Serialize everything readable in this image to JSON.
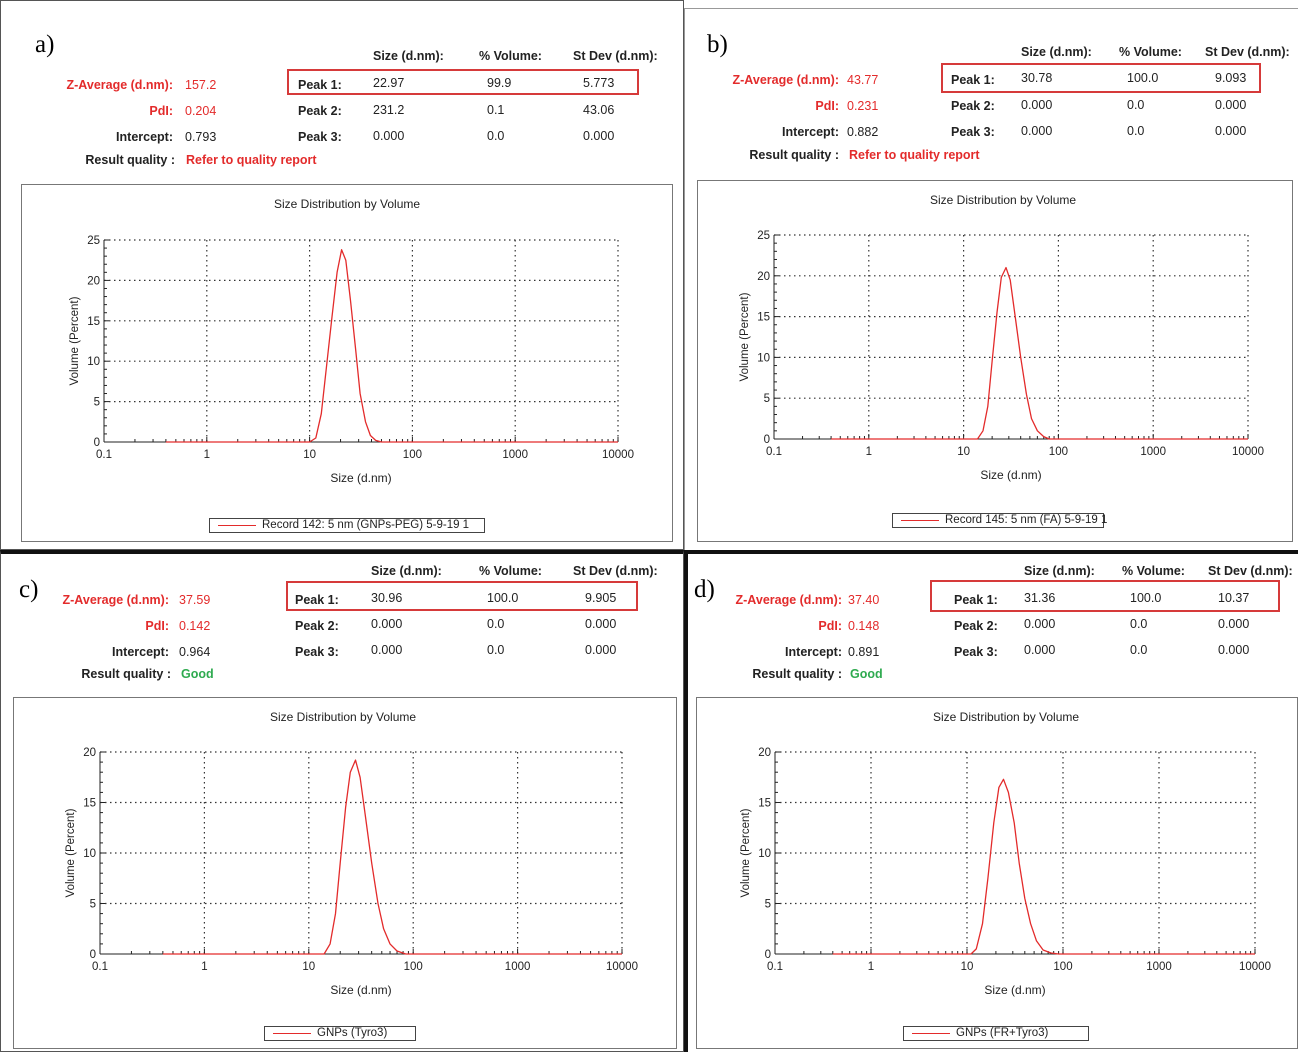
{
  "panels": [
    {
      "label": "a)",
      "header": {
        "size": "Size (d.nm):",
        "volume": "% Volume:",
        "stdev": "St Dev (d.nm):"
      },
      "z_average_label": "Z-Average (d.nm):",
      "z_average": "157.2",
      "pdi_label": "PdI:",
      "pdi": "0.204",
      "intercept_label": "Intercept:",
      "intercept": "0.793",
      "result_quality_label": "Result quality :",
      "result_quality": "Refer to quality report",
      "quality_status": "warning",
      "peaks": [
        {
          "label": "Peak 1:",
          "size": "22.97",
          "volume": "99.9",
          "stdev": "5.773"
        },
        {
          "label": "Peak 2:",
          "size": "231.2",
          "volume": "0.1",
          "stdev": "43.06"
        },
        {
          "label": "Peak 3:",
          "size": "0.000",
          "volume": "0.0",
          "stdev": "0.000"
        }
      ],
      "legend": "Record 142: 5 nm (GNPs-PEG) 5-9-19 1"
    },
    {
      "label": "b)",
      "header": {
        "size": "Size (d.nm):",
        "volume": "% Volume:",
        "stdev": "St Dev (d.nm):"
      },
      "z_average_label": "Z-Average (d.nm):",
      "z_average": "43.77",
      "pdi_label": "PdI:",
      "pdi": "0.231",
      "intercept_label": "Intercept:",
      "intercept": "0.882",
      "result_quality_label": "Result quality :",
      "result_quality": "Refer to quality report",
      "quality_status": "warning",
      "peaks": [
        {
          "label": "Peak 1:",
          "size": "30.78",
          "volume": "100.0",
          "stdev": "9.093"
        },
        {
          "label": "Peak 2:",
          "size": "0.000",
          "volume": "0.0",
          "stdev": "0.000"
        },
        {
          "label": "Peak 3:",
          "size": "0.000",
          "volume": "0.0",
          "stdev": "0.000"
        }
      ],
      "legend": "Record 145: 5 nm (FA) 5-9-19 1"
    },
    {
      "label": "c)",
      "header": {
        "size": "Size (d.nm):",
        "volume": "% Volume:",
        "stdev": "St Dev (d.nm):"
      },
      "z_average_label": "Z-Average (d.nm):",
      "z_average": "37.59",
      "pdi_label": "PdI:",
      "pdi": "0.142",
      "intercept_label": "Intercept:",
      "intercept": "0.964",
      "result_quality_label": "Result quality :",
      "result_quality": "Good",
      "quality_status": "good",
      "peaks": [
        {
          "label": "Peak 1:",
          "size": "30.96",
          "volume": "100.0",
          "stdev": "9.905"
        },
        {
          "label": "Peak 2:",
          "size": "0.000",
          "volume": "0.0",
          "stdev": "0.000"
        },
        {
          "label": "Peak 3:",
          "size": "0.000",
          "volume": "0.0",
          "stdev": "0.000"
        }
      ],
      "legend": "GNPs (Tyro3)"
    },
    {
      "label": "d)",
      "header": {
        "size": "Size (d.nm):",
        "volume": "% Volume:",
        "stdev": "St Dev (d.nm):"
      },
      "z_average_label": "Z-Average (d.nm):",
      "z_average": "37.40",
      "pdi_label": "PdI:",
      "pdi": "0.148",
      "intercept_label": "Intercept:",
      "intercept": "0.891",
      "result_quality_label": "Result quality :",
      "result_quality": "Good",
      "quality_status": "good",
      "peaks": [
        {
          "label": "Peak 1:",
          "size": "31.36",
          "volume": "100.0",
          "stdev": "10.37"
        },
        {
          "label": "Peak 2:",
          "size": "0.000",
          "volume": "0.0",
          "stdev": "0.000"
        },
        {
          "label": "Peak 3:",
          "size": "0.000",
          "volume": "0.0",
          "stdev": "0.000"
        }
      ],
      "legend": "GNPs (FR+Tyro3)"
    }
  ],
  "colors": {
    "line": "#e32b2b",
    "warning": "#e32b2b",
    "good": "#2eaa4f",
    "highlight": "#d63a3a"
  },
  "chart_data": [
    {
      "type": "line",
      "title": "Size Distribution by Volume",
      "xlabel": "Size (d.nm)",
      "ylabel": "Volume (Percent)",
      "xscale": "log",
      "xlim": [
        0.1,
        10000
      ],
      "ylim": [
        0,
        25
      ],
      "xticks": [
        0.1,
        1,
        10,
        100,
        1000,
        10000
      ],
      "xtick_labels": [
        "0.1",
        "1",
        "10",
        "100",
        "1000",
        "10000"
      ],
      "yticks": [
        0,
        5,
        10,
        15,
        20,
        25
      ],
      "ytick_labels": [
        "0",
        "5",
        "10",
        "15",
        "20",
        "25"
      ],
      "grid": true,
      "legend_position": "bottom",
      "series": [
        {
          "name": "Record 142: 5 nm (GNPs-PEG) 5-9-19 1",
          "x": [
            0.4,
            10,
            11.5,
            13,
            14.5,
            16.5,
            18.5,
            20.5,
            22.5,
            25,
            28,
            31,
            35,
            39,
            44,
            50,
            10000
          ],
          "y": [
            0,
            0,
            0.5,
            3.5,
            9,
            15.5,
            21,
            23.8,
            22.5,
            17.5,
            11.5,
            6,
            2.5,
            0.8,
            0.2,
            0,
            0
          ]
        }
      ]
    },
    {
      "type": "line",
      "title": "Size Distribution by Volume",
      "xlabel": "Size (d.nm)",
      "ylabel": "Volume (Percent)",
      "xscale": "log",
      "xlim": [
        0.1,
        10000
      ],
      "ylim": [
        0,
        25
      ],
      "xticks": [
        0.1,
        1,
        10,
        100,
        1000,
        10000
      ],
      "xtick_labels": [
        "0.1",
        "1",
        "10",
        "100",
        "1000",
        "10000"
      ],
      "yticks": [
        0,
        5,
        10,
        15,
        20,
        25
      ],
      "ytick_labels": [
        "0",
        "5",
        "10",
        "15",
        "20",
        "25"
      ],
      "grid": true,
      "legend_position": "bottom",
      "series": [
        {
          "name": "Record 145: 5 nm (FA) 5-9-19 1",
          "x": [
            0.4,
            14,
            16,
            18,
            20,
            22.5,
            25,
            28,
            31,
            35,
            40,
            46,
            52,
            60,
            70,
            80,
            10000
          ],
          "y": [
            0,
            0,
            1,
            4,
            9.5,
            15.5,
            19.8,
            21,
            19.5,
            15,
            10,
            5.5,
            2.5,
            1,
            0.3,
            0,
            0
          ]
        }
      ]
    },
    {
      "type": "line",
      "title": "Size Distribution by Volume",
      "xlabel": "Size (d.nm)",
      "ylabel": "Volume (Percent)",
      "xscale": "log",
      "xlim": [
        0.1,
        10000
      ],
      "ylim": [
        0,
        20
      ],
      "xticks": [
        0.1,
        1,
        10,
        100,
        1000,
        10000
      ],
      "xtick_labels": [
        "0.1",
        "1",
        "10",
        "100",
        "1000",
        "10000"
      ],
      "yticks": [
        0,
        5,
        10,
        15,
        20
      ],
      "ytick_labels": [
        "0",
        "5",
        "10",
        "15",
        "20"
      ],
      "grid": true,
      "legend_position": "bottom",
      "series": [
        {
          "name": "GNPs (Tyro3)",
          "x": [
            0.4,
            14,
            16,
            18,
            20,
            22.5,
            25,
            28,
            31,
            35,
            40,
            46,
            52,
            60,
            70,
            85,
            10000
          ],
          "y": [
            0,
            0,
            1,
            4,
            9,
            14.5,
            18,
            19.2,
            17.5,
            13.5,
            9,
            5,
            2.5,
            1,
            0.3,
            0,
            0
          ]
        }
      ]
    },
    {
      "type": "line",
      "title": "Size Distribution by Volume",
      "xlabel": "Size (d.nm)",
      "ylabel": "Volume (Percent)",
      "xscale": "log",
      "xlim": [
        0.1,
        10000
      ],
      "ylim": [
        0,
        20
      ],
      "xticks": [
        0.1,
        1,
        10,
        100,
        1000,
        10000
      ],
      "xtick_labels": [
        "0.1",
        "1",
        "10",
        "100",
        "1000",
        "10000"
      ],
      "yticks": [
        0,
        5,
        10,
        15,
        20
      ],
      "ytick_labels": [
        "0",
        "5",
        "10",
        "15",
        "20"
      ],
      "grid": true,
      "legend_position": "bottom",
      "series": [
        {
          "name": "GNPs (FR+Tyro3)",
          "x": [
            0.4,
            11,
            12.5,
            14.5,
            16.5,
            19,
            21.5,
            24,
            27,
            31,
            35,
            40,
            46,
            53,
            62,
            75,
            90,
            10000
          ],
          "y": [
            0,
            0,
            0.5,
            3,
            7.5,
            13,
            16.5,
            17.3,
            16,
            13,
            9,
            5.5,
            3,
            1.3,
            0.4,
            0.1,
            0,
            0
          ]
        }
      ]
    }
  ]
}
